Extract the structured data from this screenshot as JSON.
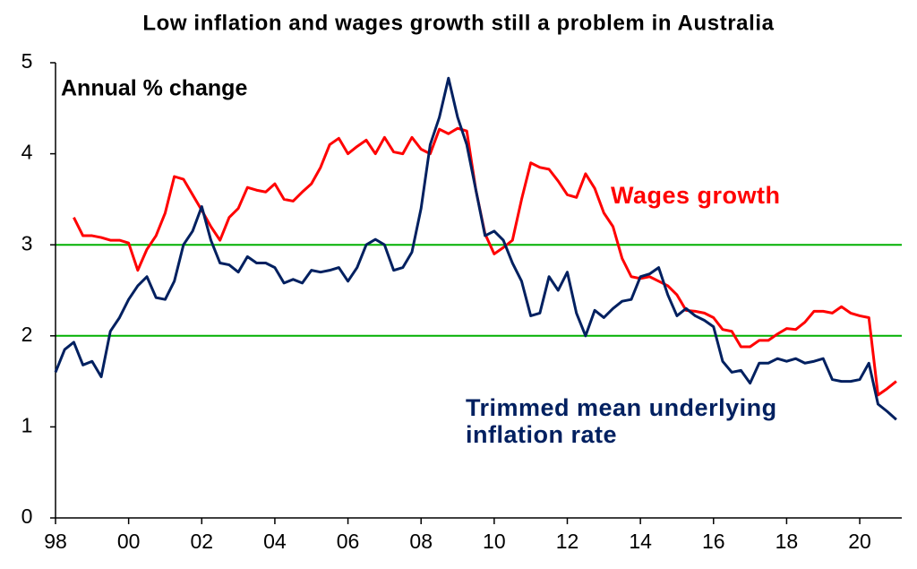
{
  "chart_data": {
    "type": "line",
    "title": "Low inflation and wages growth still a problem in Australia",
    "annotation": "Annual % change",
    "x": [
      1998,
      1998.25,
      1998.5,
      1998.75,
      1999,
      1999.25,
      1999.5,
      1999.75,
      2000,
      2000.25,
      2000.5,
      2000.75,
      2001,
      2001.25,
      2001.5,
      2001.75,
      2002,
      2002.25,
      2002.5,
      2002.75,
      2003,
      2003.25,
      2003.5,
      2003.75,
      2004,
      2004.25,
      2004.5,
      2004.75,
      2005,
      2005.25,
      2005.5,
      2005.75,
      2006,
      2006.25,
      2006.5,
      2006.75,
      2007,
      2007.25,
      2007.5,
      2007.75,
      2008,
      2008.25,
      2008.5,
      2008.75,
      2009,
      2009.25,
      2009.5,
      2009.75,
      2010,
      2010.25,
      2010.5,
      2010.75,
      2011,
      2011.25,
      2011.5,
      2011.75,
      2012,
      2012.25,
      2012.5,
      2012.75,
      2013,
      2013.25,
      2013.5,
      2013.75,
      2014,
      2014.25,
      2014.5,
      2014.75,
      2015,
      2015.25,
      2015.5,
      2015.75,
      2016,
      2016.25,
      2016.5,
      2016.75,
      2017,
      2017.25,
      2017.5,
      2017.75,
      2018,
      2018.25,
      2018.5,
      2018.75,
      2019,
      2019.25,
      2019.5,
      2019.75,
      2020,
      2020.25,
      2020.5,
      2020.75,
      2021
    ],
    "series": [
      {
        "name": "Wages growth",
        "color": "#ff0000",
        "values": [
          null,
          null,
          3.3,
          3.1,
          3.1,
          3.08,
          3.05,
          3.05,
          3.02,
          2.72,
          2.95,
          3.1,
          3.35,
          3.75,
          3.72,
          3.55,
          3.38,
          3.2,
          3.05,
          3.3,
          3.4,
          3.63,
          3.6,
          3.58,
          3.67,
          3.5,
          3.48,
          3.58,
          3.67,
          3.85,
          4.1,
          4.17,
          4.0,
          4.08,
          4.15,
          4.0,
          4.18,
          4.02,
          4.0,
          4.18,
          4.05,
          4.0,
          4.27,
          4.22,
          4.28,
          4.25,
          3.6,
          3.12,
          2.9,
          2.97,
          3.05,
          3.5,
          3.9,
          3.85,
          3.83,
          3.7,
          3.55,
          3.52,
          3.78,
          3.62,
          3.35,
          3.2,
          2.85,
          2.65,
          2.63,
          2.65,
          2.6,
          2.55,
          2.45,
          2.28,
          2.27,
          2.25,
          2.2,
          2.07,
          2.05,
          1.88,
          1.88,
          1.95,
          1.95,
          2.02,
          2.08,
          2.07,
          2.15,
          2.27,
          2.27,
          2.25,
          2.32,
          2.25,
          2.22,
          2.2,
          1.35,
          1.42,
          1.5
        ]
      },
      {
        "name": "Trimmed mean underlying inflation rate",
        "color": "#002060",
        "values": [
          1.6,
          1.85,
          1.93,
          1.68,
          1.72,
          1.55,
          2.05,
          2.2,
          2.4,
          2.55,
          2.65,
          2.42,
          2.4,
          2.6,
          3.0,
          3.15,
          3.42,
          3.05,
          2.8,
          2.78,
          2.7,
          2.87,
          2.8,
          2.8,
          2.75,
          2.58,
          2.62,
          2.58,
          2.72,
          2.7,
          2.72,
          2.75,
          2.6,
          2.75,
          3.0,
          3.06,
          3.0,
          2.72,
          2.75,
          2.92,
          3.4,
          4.1,
          4.4,
          4.83,
          4.4,
          4.1,
          3.6,
          3.1,
          3.15,
          3.05,
          2.8,
          2.6,
          2.22,
          2.25,
          2.65,
          2.5,
          2.7,
          2.25,
          2.0,
          2.28,
          2.2,
          2.3,
          2.38,
          2.4,
          2.65,
          2.68,
          2.75,
          2.45,
          2.22,
          2.3,
          2.22,
          2.17,
          2.1,
          1.72,
          1.6,
          1.62,
          1.48,
          1.7,
          1.7,
          1.75,
          1.72,
          1.75,
          1.7,
          1.72,
          1.75,
          1.52,
          1.5,
          1.5,
          1.52,
          1.7,
          1.25,
          1.17,
          1.08
        ]
      }
    ],
    "xlim": [
      1998,
      2021.15
    ],
    "xticks": [
      {
        "value": 1998,
        "label": "98"
      },
      {
        "value": 2000,
        "label": "00"
      },
      {
        "value": 2002,
        "label": "02"
      },
      {
        "value": 2004,
        "label": "04"
      },
      {
        "value": 2006,
        "label": "06"
      },
      {
        "value": 2008,
        "label": "08"
      },
      {
        "value": 2010,
        "label": "10"
      },
      {
        "value": 2012,
        "label": "12"
      },
      {
        "value": 2014,
        "label": "14"
      },
      {
        "value": 2016,
        "label": "16"
      },
      {
        "value": 2018,
        "label": "18"
      },
      {
        "value": 2020,
        "label": "20"
      }
    ],
    "ylim": [
      0,
      5
    ],
    "yticks": [
      0,
      1,
      2,
      3,
      4,
      5
    ],
    "reference_lines": {
      "values": [
        3,
        2
      ],
      "color": "#00b000"
    },
    "grid": false
  }
}
